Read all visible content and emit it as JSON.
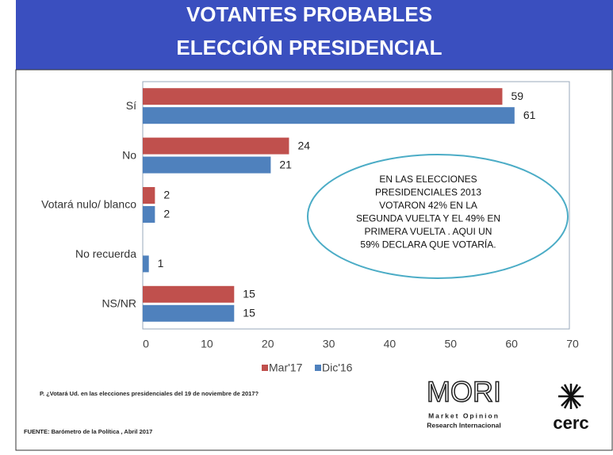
{
  "chart_data": {
    "type": "hbar",
    "title": [
      "VOTANTES PROBABLES",
      "ELECCIÓN PRESIDENCIAL"
    ],
    "categories": [
      "Sí",
      "No",
      "Votará nulo/ blanco",
      "No recuerda",
      "NS/NR"
    ],
    "series": [
      {
        "name": "Mar'17",
        "color": "#c0504d",
        "values": [
          59,
          24,
          2,
          null,
          15
        ]
      },
      {
        "name": "Dic'16",
        "color": "#4f81bd",
        "values": [
          61,
          21,
          2,
          1,
          15
        ]
      }
    ],
    "xlim": [
      0,
      70
    ],
    "xticks": [
      0,
      10,
      20,
      30,
      40,
      50,
      60,
      70
    ],
    "annotation": [
      "EN LAS ELECCIONES",
      "PRESIDENCIALES 2013",
      "VOTARON 42%  EN LA",
      "SEGUNDA VUELTA Y EL 49% EN",
      "PRIMERA VUELTA . AQUI UN",
      "59% DECLARA QUE VOTARÍA."
    ],
    "question": "P. ¿Votará Ud. en las elecciones presidenciales del 19 de noviembre de 2017?",
    "source": "FUENTE: Barómetro de la Política , Abril 2017"
  },
  "logo": {
    "mori": "MORI",
    "line1": "Market Opinion",
    "line2": "Research Internacional",
    "cerc": "cerc"
  }
}
